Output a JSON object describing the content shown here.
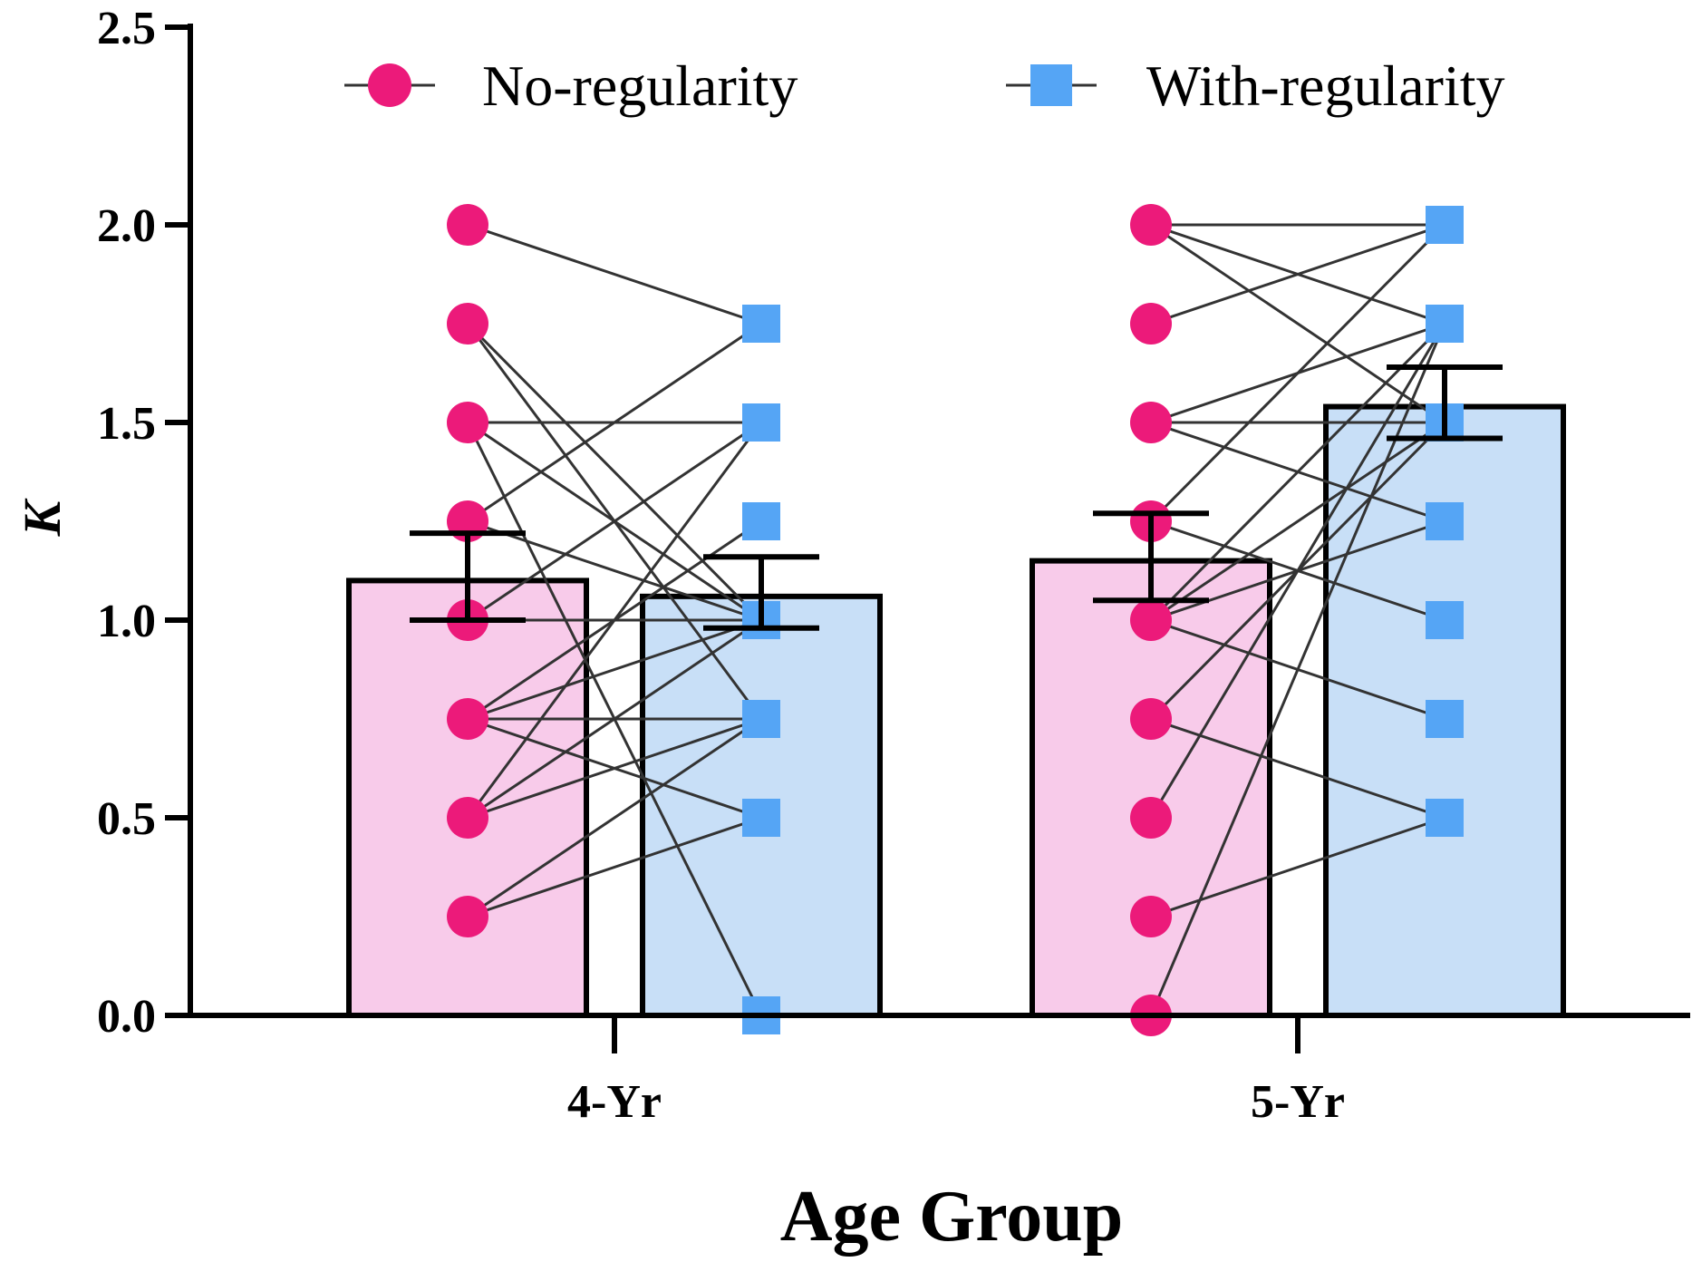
{
  "colors": {
    "no_regularity_point": "#ec1a7a",
    "no_regularity_bar": "#f8cbea",
    "with_regularity_point": "#55a5f5",
    "with_regularity_bar": "#c8dff7",
    "line": "#333333",
    "axis": "#000000"
  },
  "chart_data": {
    "type": "bar",
    "title": "",
    "xlabel": "Age Group",
    "ylabel": "K",
    "ylim": [
      0,
      2.5
    ],
    "yticks": [
      "0.0",
      "0.5",
      "1.0",
      "1.5",
      "2.0",
      "2.5"
    ],
    "categories": [
      "4-Yr",
      "5-Yr"
    ],
    "legend_position": "top",
    "series": [
      {
        "name": "No-regularity",
        "marker": "circle",
        "values": [
          1.1,
          1.15
        ],
        "error": [
          [
            1.0,
            1.22
          ],
          [
            1.05,
            1.27
          ]
        ]
      },
      {
        "name": "With-regularity",
        "marker": "square",
        "values": [
          1.06,
          1.54
        ],
        "error": [
          [
            0.98,
            1.16
          ],
          [
            1.46,
            1.64
          ]
        ]
      }
    ],
    "paired_lines": [
      [
        [
          2.0,
          1.75
        ],
        [
          1.75,
          1.0
        ],
        [
          1.75,
          0.75
        ],
        [
          1.5,
          1.5
        ],
        [
          1.5,
          0.0
        ],
        [
          1.5,
          1.0
        ],
        [
          1.25,
          1.75
        ],
        [
          1.25,
          1.0
        ],
        [
          1.0,
          1.5
        ],
        [
          1.0,
          1.0
        ],
        [
          0.75,
          1.25
        ],
        [
          0.75,
          0.75
        ],
        [
          0.75,
          0.5
        ],
        [
          0.75,
          1.0
        ],
        [
          0.5,
          1.5
        ],
        [
          0.5,
          1.0
        ],
        [
          0.5,
          0.75
        ],
        [
          0.25,
          0.75
        ],
        [
          0.25,
          0.5
        ]
      ],
      [
        [
          2.0,
          2.0
        ],
        [
          2.0,
          1.75
        ],
        [
          2.0,
          1.5
        ],
        [
          1.75,
          2.0
        ],
        [
          1.5,
          1.75
        ],
        [
          1.5,
          1.5
        ],
        [
          1.5,
          1.25
        ],
        [
          1.25,
          2.0
        ],
        [
          1.0,
          1.75
        ],
        [
          1.0,
          1.5
        ],
        [
          1.0,
          1.25
        ],
        [
          1.0,
          0.75
        ],
        [
          0.75,
          1.5
        ],
        [
          0.75,
          0.5
        ],
        [
          0.5,
          1.75
        ],
        [
          0.25,
          0.5
        ],
        [
          0.0,
          1.75
        ],
        [
          1.25,
          1.0
        ]
      ]
    ]
  }
}
